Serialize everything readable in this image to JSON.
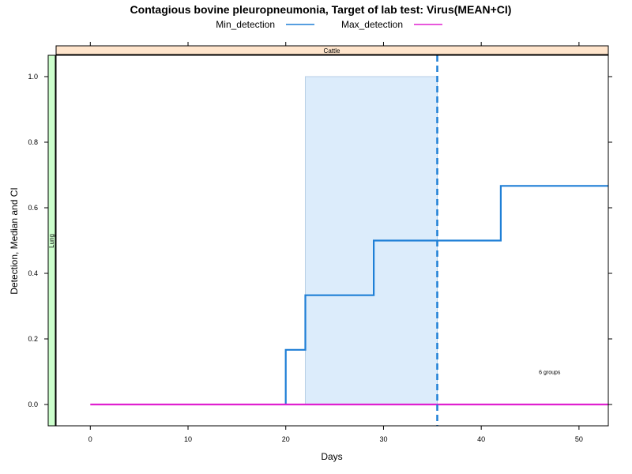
{
  "chart_data": {
    "type": "line",
    "title": "Contagious bovine pleuropneumonia, Target of lab test: Virus(MEAN+CI)",
    "xlabel": "Days",
    "ylabel": "Detection, Median and CI",
    "xlim": [
      -3.5,
      53
    ],
    "ylim": [
      -0.065,
      1.065
    ],
    "x_ticks": [
      0,
      10,
      20,
      30,
      40,
      50
    ],
    "y_ticks": [
      0.0,
      0.2,
      0.4,
      0.6,
      0.8,
      1.0
    ],
    "y_tick_labels": [
      "0.0",
      "0.2",
      "0.4",
      "0.6",
      "0.8",
      "1.0"
    ],
    "strip_top": "Cattle",
    "strip_left": "Lung",
    "annotation": {
      "text": "6 groups",
      "x": 47,
      "y": 0.1
    },
    "legend": {
      "placement": "top"
    },
    "series": [
      {
        "name": "Min_detection",
        "color": "#1f7fd6",
        "step": true,
        "points": [
          [
            20,
            0.0
          ],
          [
            20,
            0.1667
          ],
          [
            22,
            0.1667
          ],
          [
            22,
            0.3333
          ],
          [
            29,
            0.3333
          ],
          [
            29,
            0.5
          ],
          [
            42,
            0.5
          ],
          [
            42,
            0.6667
          ],
          [
            53,
            0.6667
          ]
        ]
      },
      {
        "name": "Max_detection",
        "color": "#e020d0",
        "step": false,
        "points": [
          [
            0,
            0.0
          ],
          [
            53,
            0.0
          ]
        ]
      }
    ],
    "ci_band": {
      "x": [
        22,
        35.5
      ],
      "y": [
        0.0,
        1.0
      ],
      "color": "#dcecfb"
    },
    "vline": {
      "x": 35.5,
      "color": "#1f7fd6",
      "style": "dashed"
    }
  }
}
